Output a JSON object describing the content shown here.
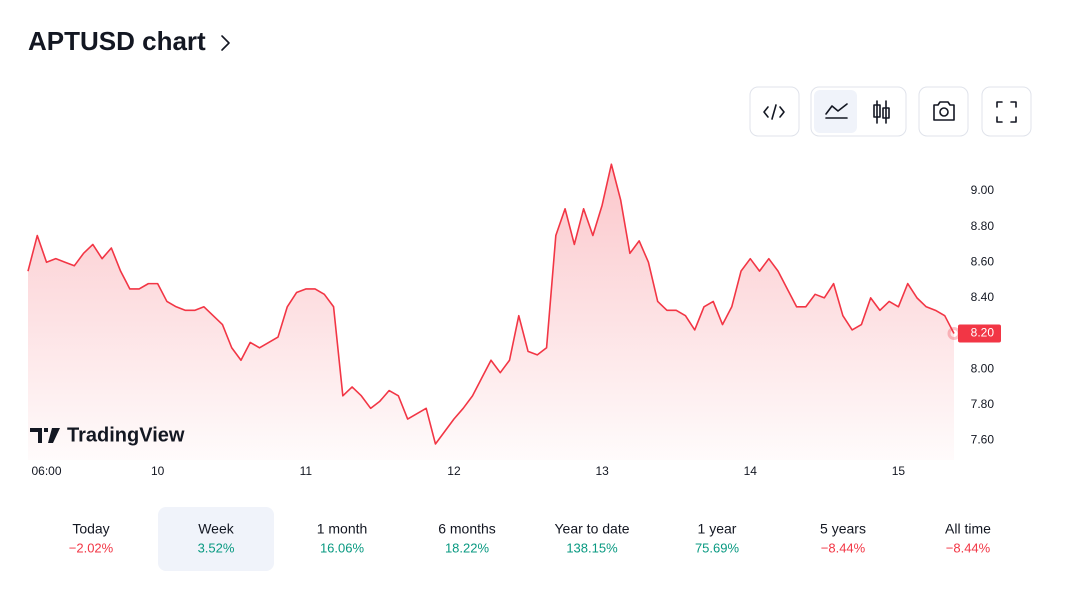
{
  "header": {
    "title": "APTUSD chart"
  },
  "chart_data": {
    "type": "area",
    "categories": [
      null,
      null,
      "06:00",
      null,
      null,
      null,
      null,
      null,
      null,
      null,
      null,
      null,
      null,
      null,
      "10",
      null,
      null,
      null,
      null,
      null,
      null,
      null,
      null,
      null,
      null,
      null,
      null,
      null,
      null,
      null,
      "11",
      null,
      null,
      null,
      null,
      null,
      null,
      null,
      null,
      null,
      null,
      null,
      null,
      null,
      null,
      null,
      "12",
      null,
      null,
      null,
      null,
      null,
      null,
      null,
      null,
      null,
      null,
      null,
      null,
      null,
      null,
      null,
      "13",
      null,
      null,
      null,
      null,
      null,
      null,
      null,
      null,
      null,
      null,
      null,
      null,
      null,
      null,
      null,
      "14",
      null,
      null,
      null,
      null,
      null,
      null,
      null,
      null,
      null,
      null,
      null,
      null,
      null,
      null,
      null,
      "15",
      null,
      null,
      null,
      null,
      null,
      null
    ],
    "values": [
      8.55,
      8.75,
      8.6,
      8.62,
      8.6,
      8.58,
      8.65,
      8.7,
      8.62,
      8.68,
      8.55,
      8.45,
      8.45,
      8.48,
      8.48,
      8.38,
      8.35,
      8.33,
      8.33,
      8.35,
      8.3,
      8.25,
      8.12,
      8.05,
      8.15,
      8.12,
      8.15,
      8.18,
      8.35,
      8.43,
      8.45,
      8.45,
      8.42,
      8.35,
      7.85,
      7.9,
      7.85,
      7.78,
      7.82,
      7.88,
      7.85,
      7.72,
      7.75,
      7.78,
      7.58,
      7.65,
      7.72,
      7.78,
      7.85,
      7.95,
      8.05,
      7.98,
      8.05,
      8.3,
      8.1,
      8.08,
      8.12,
      8.75,
      8.9,
      8.7,
      8.9,
      8.75,
      8.92,
      9.15,
      8.95,
      8.65,
      8.72,
      8.6,
      8.38,
      8.33,
      8.33,
      8.3,
      8.22,
      8.35,
      8.38,
      8.25,
      8.35,
      8.55,
      8.62,
      8.55,
      8.62,
      8.55,
      8.45,
      8.35,
      8.35,
      8.42,
      8.4,
      8.48,
      8.3,
      8.22,
      8.25,
      8.4,
      8.33,
      8.38,
      8.35,
      8.48,
      8.4,
      8.35,
      8.33,
      8.3,
      8.2
    ],
    "color": "#f23645",
    "ylim": [
      7.49,
      9.23
    ],
    "yticks": [
      {
        "value": 7.6,
        "label": "7.60"
      },
      {
        "value": 7.8,
        "label": "7.80"
      },
      {
        "value": 8.0,
        "label": "8.00"
      },
      {
        "value": 8.2,
        "label": "8.20"
      },
      {
        "value": 8.4,
        "label": "8.40"
      },
      {
        "value": 8.6,
        "label": "8.60"
      },
      {
        "value": 8.8,
        "label": "8.80"
      },
      {
        "value": 9.0,
        "label": "9.00"
      }
    ],
    "last_price": {
      "value": 8.2,
      "label": "8.20"
    },
    "watermark": "TradingView"
  },
  "periods": [
    {
      "label": "Today",
      "change": "−2.02%",
      "color": "#f23645"
    },
    {
      "label": "Week",
      "change": "3.52%",
      "color": "#089981",
      "selected": true
    },
    {
      "label": "1 month",
      "change": "16.06%",
      "color": "#089981"
    },
    {
      "label": "6 months",
      "change": "18.22%",
      "color": "#089981"
    },
    {
      "label": "Year to date",
      "change": "138.15%",
      "color": "#089981"
    },
    {
      "label": "1 year",
      "change": "75.69%",
      "color": "#089981"
    },
    {
      "label": "5 years",
      "change": "−8.44%",
      "color": "#f23645"
    },
    {
      "label": "All time",
      "change": "−8.44%",
      "color": "#f23645"
    }
  ]
}
